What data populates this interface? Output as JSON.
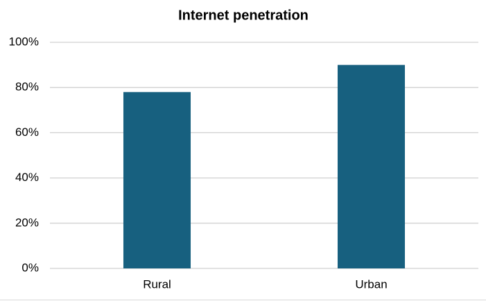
{
  "chart_data": {
    "type": "bar",
    "title": "Internet penetration",
    "categories": [
      "Rural",
      "Urban"
    ],
    "values": [
      78,
      90
    ],
    "color": "#17607f",
    "ylim": [
      0,
      100
    ],
    "yticks": [
      {
        "value": 0,
        "label": "0%"
      },
      {
        "value": 20,
        "label": "20%"
      },
      {
        "value": 40,
        "label": "40%"
      },
      {
        "value": 60,
        "label": "60%"
      },
      {
        "value": 80,
        "label": "80%"
      },
      {
        "value": 100,
        "label": "100%"
      }
    ],
    "grid": true
  }
}
